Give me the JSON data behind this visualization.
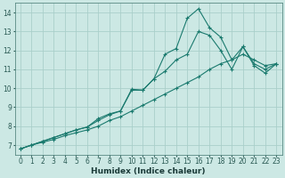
{
  "xlabel": "Humidex (Indice chaleur)",
  "bg_color": "#cce8e4",
  "grid_color": "#aacfca",
  "line_color": "#1a7a6e",
  "xlim": [
    -0.5,
    23.5
  ],
  "ylim": [
    6.5,
    14.5
  ],
  "xticks": [
    0,
    1,
    2,
    3,
    4,
    5,
    6,
    7,
    8,
    9,
    10,
    11,
    12,
    13,
    14,
    15,
    16,
    17,
    18,
    19,
    20,
    21,
    22,
    23
  ],
  "yticks": [
    7,
    8,
    9,
    10,
    11,
    12,
    13,
    14
  ],
  "series": [
    {
      "x": [
        0,
        1,
        2,
        3,
        4,
        5,
        6,
        7,
        8,
        9,
        10,
        11,
        12,
        13,
        14,
        15,
        16,
        17,
        18,
        19,
        20,
        21,
        22,
        23
      ],
      "y": [
        6.8,
        7.0,
        7.15,
        7.3,
        7.5,
        7.65,
        7.8,
        8.0,
        8.3,
        8.5,
        8.8,
        9.1,
        9.4,
        9.7,
        10.0,
        10.3,
        10.6,
        11.0,
        11.3,
        11.5,
        11.8,
        11.5,
        11.2,
        11.3
      ]
    },
    {
      "x": [
        0,
        1,
        2,
        3,
        4,
        5,
        6,
        7,
        8,
        9,
        10,
        11,
        12,
        13,
        14,
        15,
        16,
        17,
        18,
        19,
        20,
        21,
        22,
        23
      ],
      "y": [
        6.8,
        7.0,
        7.2,
        7.4,
        7.6,
        7.8,
        7.95,
        8.3,
        8.6,
        8.8,
        9.9,
        9.9,
        10.5,
        10.9,
        11.5,
        11.8,
        13.0,
        12.8,
        12.0,
        11.0,
        12.2,
        11.3,
        11.0,
        11.3
      ]
    },
    {
      "x": [
        0,
        1,
        2,
        3,
        4,
        5,
        6,
        7,
        8,
        9,
        10,
        11,
        12,
        13,
        14,
        15,
        16,
        17,
        18,
        19,
        20,
        21,
        22,
        23
      ],
      "y": [
        6.8,
        7.0,
        7.2,
        7.4,
        7.6,
        7.8,
        7.95,
        8.4,
        8.65,
        8.8,
        9.95,
        9.9,
        10.5,
        11.8,
        12.1,
        13.7,
        14.2,
        13.2,
        12.7,
        11.5,
        12.2,
        11.2,
        10.8,
        11.3
      ]
    }
  ]
}
